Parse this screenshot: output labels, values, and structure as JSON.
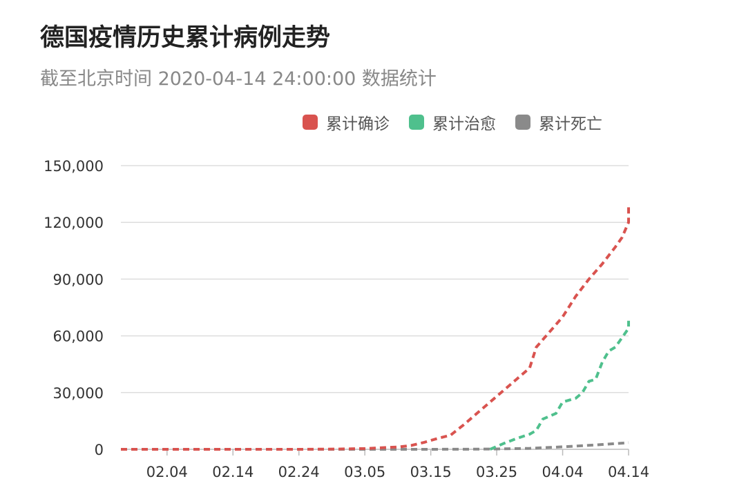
{
  "title": "德国疫情历史累计病例走势",
  "subtitle": "截至北京时间 2020-04-14 24:00:00 数据统计",
  "legend": [
    {
      "name": "累计确诊",
      "color": "#d9534f"
    },
    {
      "name": "累计治愈",
      "color": "#4fc08d"
    },
    {
      "name": "累计死亡",
      "color": "#8a8a8a"
    }
  ],
  "chart_data": {
    "type": "line",
    "line_style": "dashed",
    "x_tick_labels": [
      "02.04",
      "02.14",
      "02.24",
      "03.05",
      "03.15",
      "03.25",
      "04.04",
      "04.14"
    ],
    "y_tick_labels": [
      "0",
      "30,000",
      "60,000",
      "90,000",
      "120,000",
      "150,000"
    ],
    "ylim": [
      0,
      150000
    ],
    "xlim": [
      "2020-01-28",
      "2020-04-14"
    ],
    "grid": true,
    "legend_position": "top-right",
    "series": [
      {
        "name": "累计确诊",
        "color": "#d9534f",
        "points": [
          [
            "2020-01-28",
            4
          ],
          [
            "2020-02-04",
            12
          ],
          [
            "2020-02-14",
            16
          ],
          [
            "2020-02-24",
            16
          ],
          [
            "2020-03-01",
            130
          ],
          [
            "2020-03-05",
            400
          ],
          [
            "2020-03-08",
            900
          ],
          [
            "2020-03-10",
            1200
          ],
          [
            "2020-03-12",
            2000
          ],
          [
            "2020-03-14",
            3700
          ],
          [
            "2020-03-16",
            5700
          ],
          [
            "2020-03-18",
            7500
          ],
          [
            "2020-03-20",
            13000
          ],
          [
            "2020-03-22",
            19000
          ],
          [
            "2020-03-24",
            25000
          ],
          [
            "2020-03-26",
            31000
          ],
          [
            "2020-03-28",
            37000
          ],
          [
            "2020-03-30",
            43000
          ],
          [
            "2020-03-31",
            54000
          ],
          [
            "2020-04-02",
            62000
          ],
          [
            "2020-04-04",
            70000
          ],
          [
            "2020-04-06",
            81000
          ],
          [
            "2020-04-08",
            90000
          ],
          [
            "2020-04-10",
            98000
          ],
          [
            "2020-04-12",
            107000
          ],
          [
            "2020-04-13",
            112000
          ],
          [
            "2020-04-14",
            120000
          ],
          [
            "2020-04-14",
            130000
          ]
        ]
      },
      {
        "name": "累计治愈",
        "color": "#4fc08d",
        "points": [
          [
            "2020-03-24",
            0
          ],
          [
            "2020-03-26",
            3000
          ],
          [
            "2020-03-28",
            5700
          ],
          [
            "2020-03-30",
            8000
          ],
          [
            "2020-03-31",
            10000
          ],
          [
            "2020-04-01",
            16000
          ],
          [
            "2020-04-03",
            19000
          ],
          [
            "2020-04-04",
            25000
          ],
          [
            "2020-04-06",
            27000
          ],
          [
            "2020-04-07",
            30000
          ],
          [
            "2020-04-08",
            36000
          ],
          [
            "2020-04-09",
            37000
          ],
          [
            "2020-04-10",
            46000
          ],
          [
            "2020-04-11",
            52000
          ],
          [
            "2020-04-12",
            54000
          ],
          [
            "2020-04-13",
            59000
          ],
          [
            "2020-04-14",
            64000
          ],
          [
            "2020-04-14",
            68000
          ]
        ]
      },
      {
        "name": "累计死亡",
        "color": "#8a8a8a",
        "points": [
          [
            "2020-01-28",
            0
          ],
          [
            "2020-03-10",
            2
          ],
          [
            "2020-03-20",
            40
          ],
          [
            "2020-03-25",
            200
          ],
          [
            "2020-03-30",
            500
          ],
          [
            "2020-04-04",
            1300
          ],
          [
            "2020-04-09",
            2300
          ],
          [
            "2020-04-14",
            3500
          ]
        ]
      }
    ]
  }
}
